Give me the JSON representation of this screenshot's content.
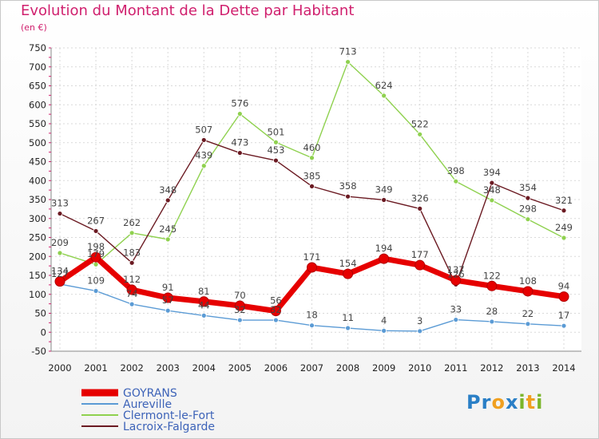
{
  "chart_data": {
    "type": "line",
    "title": "Evolution du Montant de la Dette par Habitant",
    "subtitle": "(en €)",
    "xlabel": "",
    "ylabel": "",
    "x": [
      "2000",
      "2001",
      "2002",
      "2003",
      "2004",
      "2005",
      "2006",
      "2007",
      "2008",
      "2009",
      "2010",
      "2011",
      "2012",
      "2013",
      "2014"
    ],
    "ylim": [
      -50,
      750
    ],
    "yticks": [
      -50,
      0,
      50,
      100,
      150,
      200,
      250,
      300,
      350,
      400,
      450,
      500,
      550,
      600,
      650,
      700,
      750
    ],
    "grid": true,
    "legend_position": "bottom-left",
    "series": [
      {
        "name": "GOYRANS",
        "color": "#e60000",
        "values": [
          134,
          198,
          112,
          91,
          81,
          70,
          56,
          171,
          154,
          194,
          177,
          137,
          122,
          108,
          94
        ]
      },
      {
        "name": "Aureville",
        "color": "#5b9bd5",
        "values": [
          127,
          109,
          74,
          57,
          44,
          32,
          32,
          18,
          11,
          4,
          3,
          33,
          28,
          22,
          17
        ]
      },
      {
        "name": "Clermont-le-Fort",
        "color": "#8fd14f",
        "values": [
          209,
          179,
          262,
          245,
          439,
          576,
          501,
          460,
          713,
          624,
          522,
          398,
          348,
          298,
          249
        ]
      },
      {
        "name": "Lacroix-Falgarde",
        "color": "#6b1a22",
        "values": [
          313,
          267,
          183,
          348,
          507,
          473,
          453,
          385,
          358,
          349,
          326,
          126,
          394,
          354,
          321
        ]
      }
    ]
  },
  "logo": {
    "letters": [
      "P",
      "r",
      "o",
      "x",
      "i",
      "t",
      "i"
    ]
  }
}
